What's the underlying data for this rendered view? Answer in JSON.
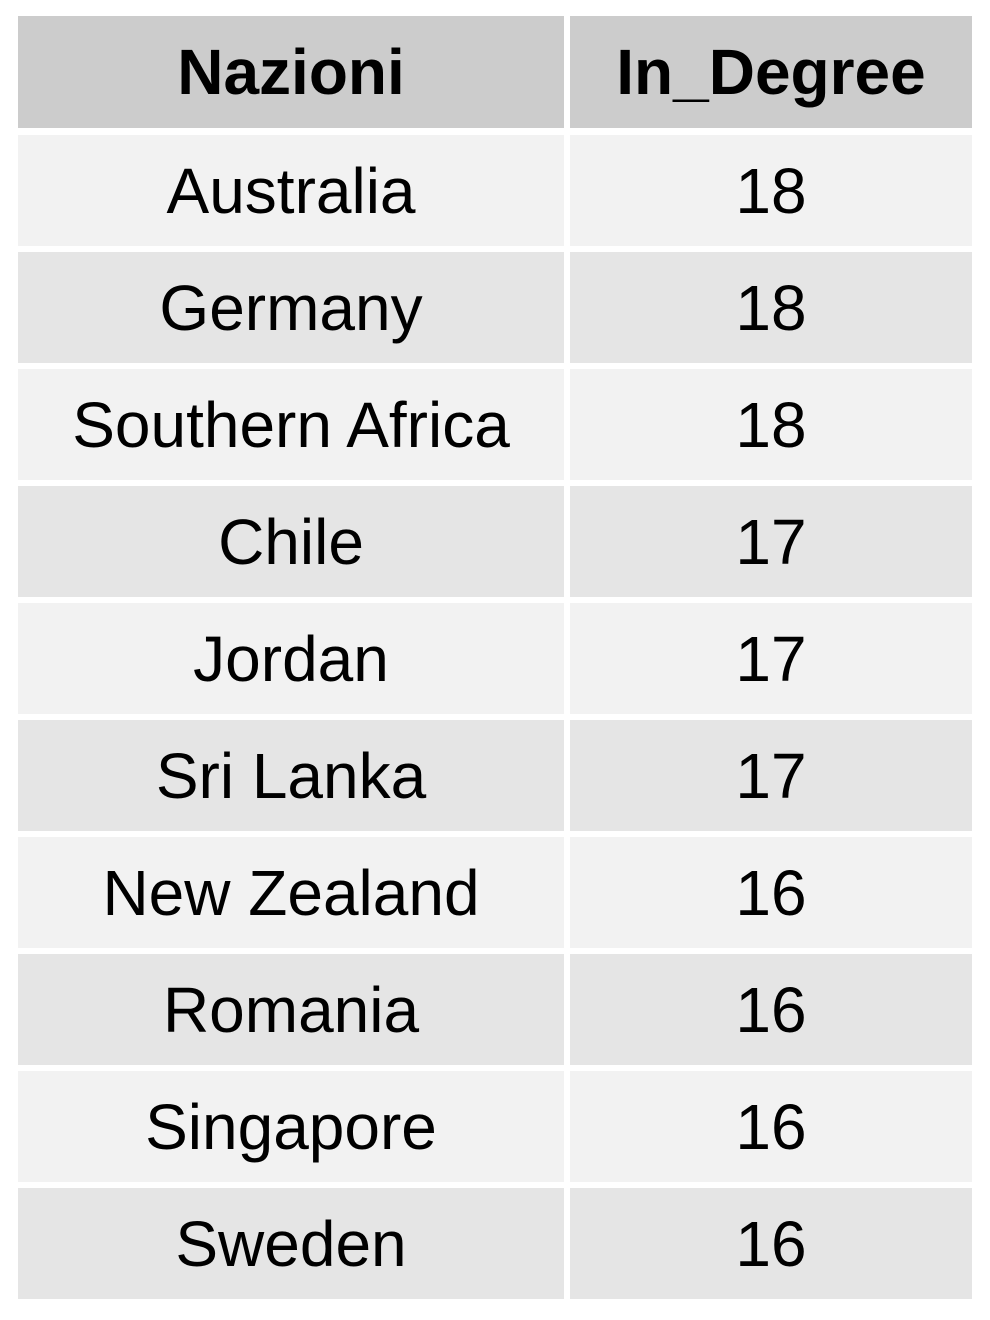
{
  "chart_data": {
    "type": "table",
    "columns": [
      "Nazioni",
      "In_Degree"
    ],
    "rows": [
      {
        "nazione": "Australia",
        "in_degree": 18
      },
      {
        "nazione": "Germany",
        "in_degree": 18
      },
      {
        "nazione": "Southern Africa",
        "in_degree": 18
      },
      {
        "nazione": "Chile",
        "in_degree": 17
      },
      {
        "nazione": "Jordan",
        "in_degree": 17
      },
      {
        "nazione": "Sri Lanka",
        "in_degree": 17
      },
      {
        "nazione": "New Zealand",
        "in_degree": 16
      },
      {
        "nazione": "Romania",
        "in_degree": 16
      },
      {
        "nazione": "Singapore",
        "in_degree": 16
      },
      {
        "nazione": "Sweden",
        "in_degree": 16
      }
    ]
  },
  "colors": {
    "header_bg": "#cccccc",
    "row_light": "#f2f2f2",
    "row_dark": "#e5e5e5"
  }
}
